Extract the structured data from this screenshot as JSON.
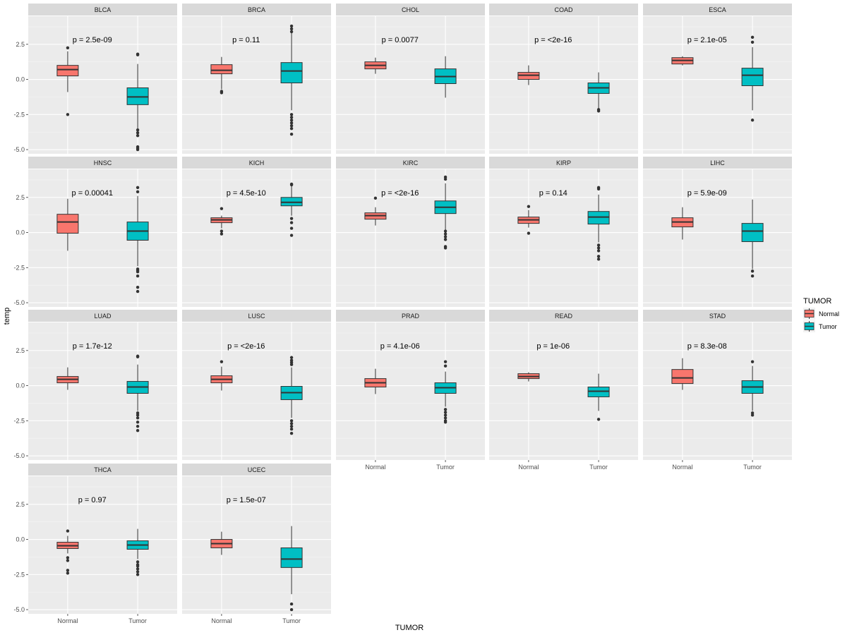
{
  "chart_data": {
    "type": "boxplot",
    "facet_by": "cancer_type",
    "xlabel": "TUMOR",
    "ylabel": "temp",
    "ylim": [
      -5.3,
      4.5
    ],
    "yticks": [
      2.5,
      0.0,
      -2.5,
      -5.0
    ],
    "ytick_labels": [
      "2.5",
      "0.0",
      "-2.5",
      "-5.0"
    ],
    "categories": [
      "Normal",
      "Tumor"
    ],
    "legend": {
      "title": "TUMOR",
      "entries": [
        {
          "label": "Normal",
          "color": "#F8766D"
        },
        {
          "label": "Tumor",
          "color": "#00BFC4"
        }
      ]
    },
    "panels": [
      {
        "name": "BLCA",
        "p_label": "p = 2.5e-09",
        "groups": [
          {
            "category": "Normal",
            "q1": 0.25,
            "median": 0.7,
            "q3": 1.0,
            "whisker_low": -0.9,
            "whisker_high": 2.0,
            "outliers": [
              2.25,
              -2.5
            ]
          },
          {
            "category": "Tumor",
            "q1": -1.8,
            "median": -1.25,
            "q3": -0.6,
            "whisker_low": -3.5,
            "whisker_high": 1.1,
            "outliers": [
              1.75,
              1.8,
              -3.6,
              -3.8,
              -4.0,
              -4.8,
              -4.9,
              -5.0
            ]
          }
        ]
      },
      {
        "name": "BRCA",
        "p_label": "p = 0.11",
        "groups": [
          {
            "category": "Normal",
            "q1": 0.4,
            "median": 0.65,
            "q3": 1.05,
            "whisker_low": -0.7,
            "whisker_high": 1.6,
            "outliers": [
              -0.85,
              -0.95
            ]
          },
          {
            "category": "Tumor",
            "q1": -0.25,
            "median": 0.6,
            "q3": 1.2,
            "whisker_low": -2.2,
            "whisker_high": 3.3,
            "outliers": [
              3.4,
              3.6,
              3.8,
              -2.5,
              -2.7,
              -2.9,
              -3.1,
              -3.3,
              -3.5,
              -3.9
            ]
          }
        ]
      },
      {
        "name": "CHOL",
        "p_label": "p = 0.0077",
        "groups": [
          {
            "category": "Normal",
            "q1": 0.75,
            "median": 1.0,
            "q3": 1.25,
            "whisker_low": 0.4,
            "whisker_high": 1.55,
            "outliers": []
          },
          {
            "category": "Tumor",
            "q1": -0.3,
            "median": 0.2,
            "q3": 0.75,
            "whisker_low": -1.3,
            "whisker_high": 1.65,
            "outliers": []
          }
        ]
      },
      {
        "name": "COAD",
        "p_label": "p = <2e-16",
        "groups": [
          {
            "category": "Normal",
            "q1": 0.0,
            "median": 0.3,
            "q3": 0.5,
            "whisker_low": -0.4,
            "whisker_high": 1.0,
            "outliers": []
          },
          {
            "category": "Tumor",
            "q1": -1.0,
            "median": -0.6,
            "q3": -0.25,
            "whisker_low": -2.1,
            "whisker_high": 0.5,
            "outliers": [
              -2.15,
              -2.25
            ]
          }
        ]
      },
      {
        "name": "ESCA",
        "p_label": "p = 2.1e-05",
        "groups": [
          {
            "category": "Normal",
            "q1": 1.1,
            "median": 1.35,
            "q3": 1.55,
            "whisker_low": 1.0,
            "whisker_high": 1.65,
            "outliers": []
          },
          {
            "category": "Tumor",
            "q1": -0.45,
            "median": 0.3,
            "q3": 0.8,
            "whisker_low": -2.2,
            "whisker_high": 2.3,
            "outliers": [
              3.0,
              2.65,
              -2.9
            ]
          }
        ]
      },
      {
        "name": "HNSC",
        "p_label": "p = 0.00041",
        "groups": [
          {
            "category": "Normal",
            "q1": -0.05,
            "median": 0.75,
            "q3": 1.3,
            "whisker_low": -1.3,
            "whisker_high": 2.4,
            "outliers": []
          },
          {
            "category": "Tumor",
            "q1": -0.55,
            "median": 0.1,
            "q3": 0.75,
            "whisker_low": -2.4,
            "whisker_high": 2.6,
            "outliers": [
              2.9,
              3.2,
              -2.6,
              -2.7,
              -2.8,
              -3.1,
              -3.9,
              -4.2
            ]
          }
        ]
      },
      {
        "name": "KICH",
        "p_label": "p = 4.5e-10",
        "groups": [
          {
            "category": "Normal",
            "q1": 0.7,
            "median": 0.9,
            "q3": 1.05,
            "whisker_low": 0.3,
            "whisker_high": 1.2,
            "outliers": [
              1.7,
              0.1,
              -0.1
            ]
          },
          {
            "category": "Tumor",
            "q1": 1.9,
            "median": 2.15,
            "q3": 2.5,
            "whisker_low": 1.2,
            "whisker_high": 3.3,
            "outliers": [
              3.4,
              3.45,
              1.0,
              0.7,
              0.3,
              -0.2
            ]
          }
        ]
      },
      {
        "name": "KIRC",
        "p_label": "p = <2e-16",
        "groups": [
          {
            "category": "Normal",
            "q1": 0.95,
            "median": 1.2,
            "q3": 1.4,
            "whisker_low": 0.5,
            "whisker_high": 1.8,
            "outliers": [
              2.45
            ]
          },
          {
            "category": "Tumor",
            "q1": 1.35,
            "median": 1.8,
            "q3": 2.25,
            "whisker_low": 0.2,
            "whisker_high": 3.5,
            "outliers": [
              3.8,
              3.95,
              0.1,
              -0.1,
              -0.3,
              -0.5,
              -1.0,
              -1.1
            ]
          }
        ]
      },
      {
        "name": "KIRP",
        "p_label": "p = 0.14",
        "groups": [
          {
            "category": "Normal",
            "q1": 0.65,
            "median": 0.9,
            "q3": 1.1,
            "whisker_low": 0.35,
            "whisker_high": 1.6,
            "outliers": [
              1.85,
              -0.05
            ]
          },
          {
            "category": "Tumor",
            "q1": 0.6,
            "median": 1.1,
            "q3": 1.5,
            "whisker_low": -0.7,
            "whisker_high": 2.7,
            "outliers": [
              3.1,
              3.2,
              -0.9,
              -1.1,
              -1.3,
              -1.7,
              -1.9
            ]
          }
        ]
      },
      {
        "name": "LIHC",
        "p_label": "p = 5.9e-09",
        "groups": [
          {
            "category": "Normal",
            "q1": 0.4,
            "median": 0.75,
            "q3": 1.05,
            "whisker_low": -0.5,
            "whisker_high": 1.8,
            "outliers": []
          },
          {
            "category": "Tumor",
            "q1": -0.65,
            "median": 0.1,
            "q3": 0.65,
            "whisker_low": -2.6,
            "whisker_high": 2.35,
            "outliers": [
              -2.75,
              -3.1
            ]
          }
        ]
      },
      {
        "name": "LUAD",
        "p_label": "p = 1.7e-12",
        "groups": [
          {
            "category": "Normal",
            "q1": 0.2,
            "median": 0.45,
            "q3": 0.65,
            "whisker_low": -0.3,
            "whisker_high": 1.3,
            "outliers": []
          },
          {
            "category": "Tumor",
            "q1": -0.55,
            "median": -0.1,
            "q3": 0.3,
            "whisker_low": -1.8,
            "whisker_high": 1.5,
            "outliers": [
              2.05,
              2.1,
              -1.95,
              -2.1,
              -2.3,
              -2.6,
              -2.9,
              -3.2
            ]
          }
        ]
      },
      {
        "name": "LUSC",
        "p_label": "p = <2e-16",
        "groups": [
          {
            "category": "Normal",
            "q1": 0.2,
            "median": 0.45,
            "q3": 0.7,
            "whisker_low": -0.35,
            "whisker_high": 1.35,
            "outliers": [
              1.7
            ]
          },
          {
            "category": "Tumor",
            "q1": -1.0,
            "median": -0.5,
            "q3": -0.05,
            "whisker_low": -2.3,
            "whisker_high": 1.3,
            "outliers": [
              1.5,
              1.65,
              1.8,
              2.0,
              -2.5,
              -2.7,
              -2.9,
              -3.1,
              -3.4
            ]
          }
        ]
      },
      {
        "name": "PRAD",
        "p_label": "p = 4.1e-06",
        "groups": [
          {
            "category": "Normal",
            "q1": -0.1,
            "median": 0.2,
            "q3": 0.5,
            "whisker_low": -0.6,
            "whisker_high": 1.2,
            "outliers": []
          },
          {
            "category": "Tumor",
            "q1": -0.55,
            "median": -0.15,
            "q3": 0.2,
            "whisker_low": -1.5,
            "whisker_high": 1.0,
            "outliers": [
              1.4,
              1.7,
              -1.7,
              -1.9,
              -2.1,
              -2.3,
              -2.5,
              -2.6
            ]
          }
        ]
      },
      {
        "name": "READ",
        "p_label": "p = 1e-06",
        "groups": [
          {
            "category": "Normal",
            "q1": 0.5,
            "median": 0.65,
            "q3": 0.85,
            "whisker_low": 0.3,
            "whisker_high": 0.95,
            "outliers": []
          },
          {
            "category": "Tumor",
            "q1": -0.8,
            "median": -0.4,
            "q3": -0.1,
            "whisker_low": -1.8,
            "whisker_high": 0.85,
            "outliers": [
              -2.4
            ]
          }
        ]
      },
      {
        "name": "STAD",
        "p_label": "p = 8.3e-08",
        "groups": [
          {
            "category": "Normal",
            "q1": 0.15,
            "median": 0.55,
            "q3": 1.15,
            "whisker_low": -0.3,
            "whisker_high": 1.95,
            "outliers": []
          },
          {
            "category": "Tumor",
            "q1": -0.55,
            "median": -0.1,
            "q3": 0.35,
            "whisker_low": -1.8,
            "whisker_high": 1.4,
            "outliers": [
              1.7,
              -1.95,
              -2.1
            ]
          }
        ]
      },
      {
        "name": "THCA",
        "p_label": "p = 0.97",
        "groups": [
          {
            "category": "Normal",
            "q1": -0.65,
            "median": -0.45,
            "q3": -0.2,
            "whisker_low": -1.0,
            "whisker_high": 0.25,
            "outliers": [
              0.6,
              -1.3,
              -1.5,
              -2.2,
              -2.4
            ]
          },
          {
            "category": "Tumor",
            "q1": -0.7,
            "median": -0.4,
            "q3": -0.1,
            "whisker_low": -1.4,
            "whisker_high": 0.75,
            "outliers": [
              -1.6,
              -1.8,
              -1.9,
              -2.1,
              -2.3,
              -2.5
            ]
          }
        ]
      },
      {
        "name": "UCEC",
        "p_label": "p = 1.5e-07",
        "groups": [
          {
            "category": "Normal",
            "q1": -0.6,
            "median": -0.3,
            "q3": 0.0,
            "whisker_low": -1.1,
            "whisker_high": 0.55,
            "outliers": []
          },
          {
            "category": "Tumor",
            "q1": -2.0,
            "median": -1.4,
            "q3": -0.6,
            "whisker_low": -3.9,
            "whisker_high": 0.95,
            "outliers": [
              -4.6,
              -5.0
            ]
          }
        ]
      }
    ]
  }
}
